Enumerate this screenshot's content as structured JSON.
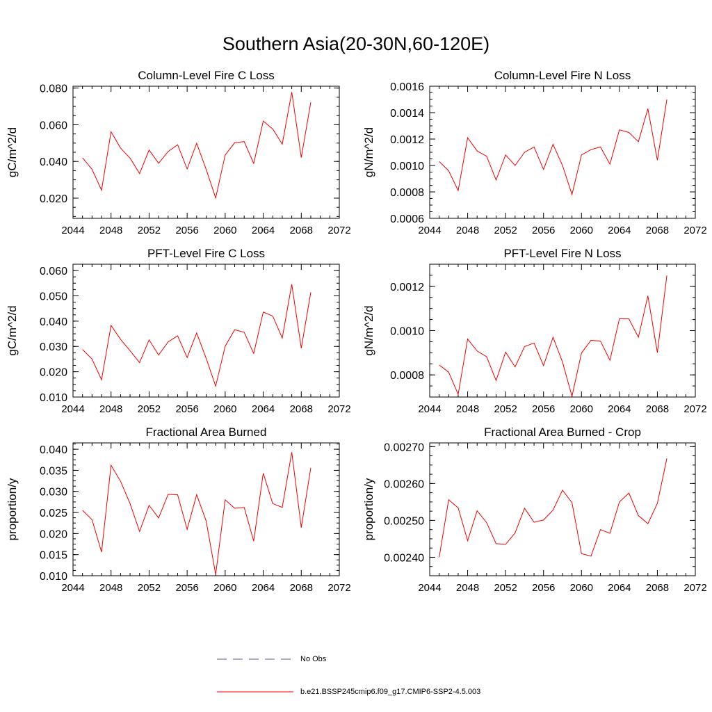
{
  "title": "Southern Asia(20-30N,60-120E)",
  "legend": {
    "obs_label": "No Obs",
    "obs_color": "#5a5aa0",
    "model_label": "b.e21.BSSP245cmip6.f09_g17.CMIP6-SSP2-4.5.003",
    "model_color": "#ee0000"
  },
  "chart_data": [
    {
      "type": "line",
      "title": "Column-Level Fire C Loss",
      "ylabel": "gC/m^2/d",
      "xlim": [
        2044,
        2072
      ],
      "ylim": [
        0.009,
        0.081
      ],
      "xticks": [
        "2044",
        "2048",
        "2052",
        "2056",
        "2060",
        "2064",
        "2068",
        "2072"
      ],
      "yticks": [
        "0.020",
        "0.040",
        "0.060",
        "0.080"
      ],
      "x": [
        2045,
        2046,
        2047,
        2048,
        2049,
        2050,
        2051,
        2052,
        2053,
        2054,
        2055,
        2056,
        2057,
        2058,
        2059,
        2060,
        2061,
        2062,
        2063,
        2064,
        2065,
        2066,
        2067,
        2068,
        2069
      ],
      "series": [
        {
          "name": "b.e21.BSSP245cmip6.f09_g17.CMIP6-SSP2-4.5.003",
          "values": [
            0.042,
            0.0357,
            0.0243,
            0.0562,
            0.0473,
            0.0418,
            0.0334,
            0.0462,
            0.039,
            0.0454,
            0.0491,
            0.0359,
            0.0499,
            0.0357,
            0.0201,
            0.0435,
            0.0502,
            0.0508,
            0.0389,
            0.062,
            0.0577,
            0.0494,
            0.0778,
            0.0421,
            0.0723
          ]
        }
      ]
    },
    {
      "type": "line",
      "title": "Column-Level Fire N Loss",
      "ylabel": "gN/m^2/d",
      "xlim": [
        2044,
        2072
      ],
      "ylim": [
        0.0006,
        0.0016
      ],
      "xticks": [
        "2044",
        "2048",
        "2052",
        "2056",
        "2060",
        "2064",
        "2068",
        "2072"
      ],
      "yticks": [
        "0.0006",
        "0.0008",
        "0.0010",
        "0.0012",
        "0.0014",
        "0.0016"
      ],
      "x": [
        2045,
        2046,
        2047,
        2048,
        2049,
        2050,
        2051,
        2052,
        2053,
        2054,
        2055,
        2056,
        2057,
        2058,
        2059,
        2060,
        2061,
        2062,
        2063,
        2064,
        2065,
        2066,
        2067,
        2068,
        2069
      ],
      "series": [
        {
          "name": "b.e21.BSSP245cmip6.f09_g17.CMIP6-SSP2-4.5.003",
          "values": [
            0.00103,
            0.00096,
            0.00081,
            0.00121,
            0.00111,
            0.00107,
            0.00089,
            0.00108,
            0.001,
            0.0011,
            0.00114,
            0.00097,
            0.00116,
            0.001,
            0.00078,
            0.00108,
            0.00112,
            0.00114,
            0.00101,
            0.00127,
            0.00125,
            0.00118,
            0.00143,
            0.00104,
            0.0015
          ]
        }
      ]
    },
    {
      "type": "line",
      "title": "PFT-Level Fire C Loss",
      "ylabel": "gC/m^2/d",
      "xlim": [
        2044,
        2072
      ],
      "ylim": [
        0.01,
        0.0625
      ],
      "xticks": [
        "2044",
        "2048",
        "2052",
        "2056",
        "2060",
        "2064",
        "2068",
        "2072"
      ],
      "yticks": [
        "0.010",
        "0.020",
        "0.030",
        "0.040",
        "0.050",
        "0.060"
      ],
      "x": [
        2045,
        2046,
        2047,
        2048,
        2049,
        2050,
        2051,
        2052,
        2053,
        2054,
        2055,
        2056,
        2057,
        2058,
        2059,
        2060,
        2061,
        2062,
        2063,
        2064,
        2065,
        2066,
        2067,
        2068,
        2069
      ],
      "series": [
        {
          "name": "b.e21.BSSP245cmip6.f09_g17.CMIP6-SSP2-4.5.003",
          "values": [
            0.0288,
            0.025,
            0.0168,
            0.0383,
            0.0328,
            0.0283,
            0.0236,
            0.0326,
            0.0266,
            0.0318,
            0.0342,
            0.0256,
            0.0353,
            0.0253,
            0.0143,
            0.0301,
            0.0366,
            0.0356,
            0.0272,
            0.0436,
            0.042,
            0.0333,
            0.0546,
            0.0293,
            0.0514
          ]
        }
      ]
    },
    {
      "type": "line",
      "title": "PFT-Level Fire N Loss",
      "ylabel": "gN/m^2/d",
      "xlim": [
        2044,
        2072
      ],
      "ylim": [
        0.0007,
        0.0013
      ],
      "xticks": [
        "2044",
        "2048",
        "2052",
        "2056",
        "2060",
        "2064",
        "2068",
        "2072"
      ],
      "yticks": [
        "0.0008",
        "0.0010",
        "0.0012"
      ],
      "x": [
        2045,
        2046,
        2047,
        2048,
        2049,
        2050,
        2051,
        2052,
        2053,
        2054,
        2055,
        2056,
        2057,
        2058,
        2059,
        2060,
        2061,
        2062,
        2063,
        2064,
        2065,
        2066,
        2067,
        2068,
        2069
      ],
      "series": [
        {
          "name": "b.e21.BSSP245cmip6.f09_g17.CMIP6-SSP2-4.5.003",
          "values": [
            0.000845,
            0.000812,
            0.000712,
            0.000962,
            0.000908,
            0.000882,
            0.000775,
            0.000903,
            0.000836,
            0.000928,
            0.000944,
            0.000842,
            0.00097,
            0.000858,
            0.000703,
            0.000899,
            0.000956,
            0.000953,
            0.000866,
            0.001054,
            0.001053,
            0.00097,
            0.001157,
            0.000901,
            0.001249
          ]
        }
      ]
    },
    {
      "type": "line",
      "title": "Fractional Area Burned",
      "ylabel": "proportion/y",
      "xlim": [
        2044,
        2072
      ],
      "ylim": [
        0.01,
        0.0415
      ],
      "xticks": [
        "2044",
        "2048",
        "2052",
        "2056",
        "2060",
        "2064",
        "2068",
        "2072"
      ],
      "yticks": [
        "0.010",
        "0.015",
        "0.020",
        "0.025",
        "0.030",
        "0.035",
        "0.040"
      ],
      "x": [
        2045,
        2046,
        2047,
        2048,
        2049,
        2050,
        2051,
        2052,
        2053,
        2054,
        2055,
        2056,
        2057,
        2058,
        2059,
        2060,
        2061,
        2062,
        2063,
        2064,
        2065,
        2066,
        2067,
        2068,
        2069
      ],
      "series": [
        {
          "name": "b.e21.BSSP245cmip6.f09_g17.CMIP6-SSP2-4.5.003",
          "values": [
            0.0255,
            0.0233,
            0.0156,
            0.0362,
            0.0324,
            0.0271,
            0.0205,
            0.0267,
            0.0237,
            0.0293,
            0.0292,
            0.021,
            0.0292,
            0.023,
            0.0103,
            0.028,
            0.026,
            0.0262,
            0.0182,
            0.0343,
            0.0271,
            0.0262,
            0.0393,
            0.0214,
            0.0356
          ]
        }
      ]
    },
    {
      "type": "line",
      "title": "Fractional Area Burned - Crop",
      "ylabel": "proportion/y",
      "xlim": [
        2044,
        2072
      ],
      "ylim": [
        0.00235,
        0.00271
      ],
      "xticks": [
        "2044",
        "2048",
        "2052",
        "2056",
        "2060",
        "2064",
        "2068",
        "2072"
      ],
      "yticks": [
        "0.00240",
        "0.00250",
        "0.00260",
        "0.00270"
      ],
      "x": [
        2045,
        2046,
        2047,
        2048,
        2049,
        2050,
        2051,
        2052,
        2053,
        2054,
        2055,
        2056,
        2057,
        2058,
        2059,
        2060,
        2061,
        2062,
        2063,
        2064,
        2065,
        2066,
        2067,
        2068,
        2069
      ],
      "series": [
        {
          "name": "b.e21.BSSP245cmip6.f09_g17.CMIP6-SSP2-4.5.003",
          "values": [
            0.0024,
            0.002556,
            0.002534,
            0.002445,
            0.002526,
            0.002494,
            0.002437,
            0.002435,
            0.002466,
            0.002533,
            0.002495,
            0.002501,
            0.002528,
            0.002582,
            0.002548,
            0.00241,
            0.002403,
            0.002475,
            0.002465,
            0.00255,
            0.002574,
            0.002513,
            0.002491,
            0.002546,
            0.002668
          ]
        }
      ]
    }
  ]
}
